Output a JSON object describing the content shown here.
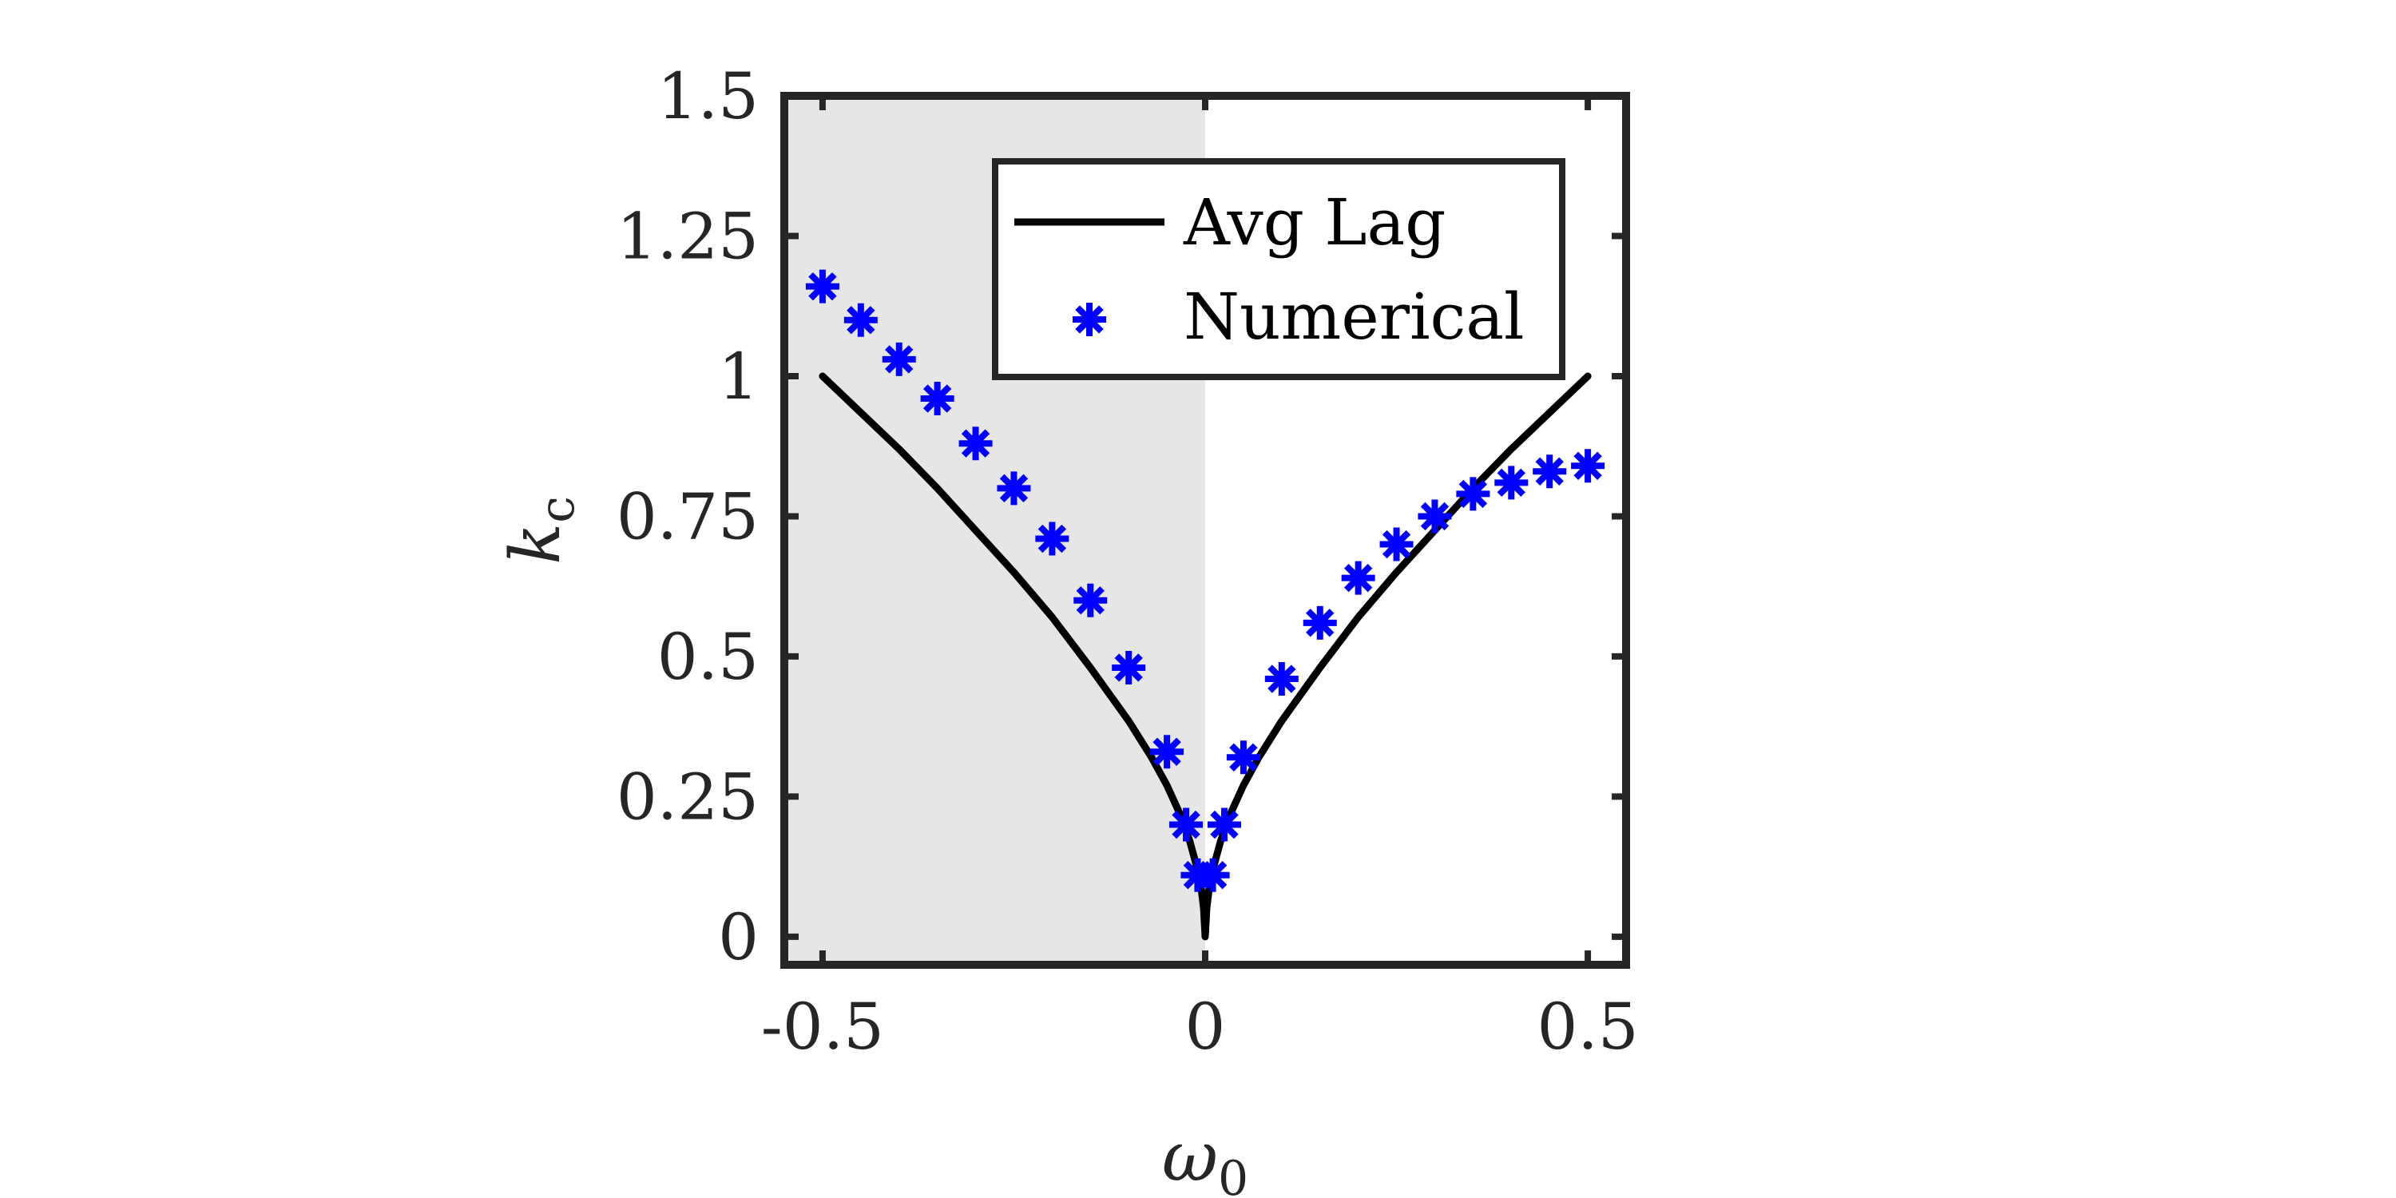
{
  "chart_data": {
    "type": "line",
    "title": "",
    "xlabel": "ω",
    "xlabel_sub": "0",
    "ylabel": "k",
    "ylabel_sub": "c",
    "xlim": [
      -0.55,
      0.55
    ],
    "ylim": [
      -0.05,
      1.5
    ],
    "xticks": [
      -0.5,
      0,
      0.5
    ],
    "xtick_labels": [
      "-0.5",
      "0",
      "0.5"
    ],
    "yticks": [
      0,
      0.25,
      0.5,
      0.75,
      1,
      1.25,
      1.5
    ],
    "ytick_labels": [
      "0",
      "0.25",
      "0.5",
      "0.75",
      "1",
      "1.25",
      "1.5"
    ],
    "shaded_region": {
      "x_from": -0.55,
      "x_to": 0,
      "color": "#e6e6e6"
    },
    "legend_position": "top-right",
    "grid": false,
    "series": [
      {
        "name": "Avg Lag",
        "style": "line",
        "color": "#000000",
        "x": [
          -0.5,
          -0.45,
          -0.4,
          -0.35,
          -0.3,
          -0.25,
          -0.2,
          -0.15,
          -0.1,
          -0.07,
          -0.05,
          -0.03,
          -0.02,
          -0.01,
          -0.005,
          -0.002,
          0,
          0.002,
          0.005,
          0.01,
          0.02,
          0.03,
          0.05,
          0.07,
          0.1,
          0.15,
          0.2,
          0.25,
          0.3,
          0.35,
          0.4,
          0.45,
          0.5
        ],
        "y": [
          1.0,
          0.935,
          0.87,
          0.8,
          0.725,
          0.65,
          0.57,
          0.48,
          0.385,
          0.32,
          0.27,
          0.21,
          0.17,
          0.12,
          0.085,
          0.05,
          0.0,
          0.05,
          0.085,
          0.12,
          0.17,
          0.21,
          0.27,
          0.32,
          0.385,
          0.48,
          0.57,
          0.65,
          0.725,
          0.8,
          0.87,
          0.935,
          1.0
        ]
      },
      {
        "name": "Numerical",
        "style": "marker",
        "marker": "asterisk",
        "color": "#0000ff",
        "x": [
          -0.5,
          -0.45,
          -0.4,
          -0.35,
          -0.3,
          -0.25,
          -0.2,
          -0.15,
          -0.1,
          -0.05,
          -0.025,
          -0.01,
          0.01,
          0.025,
          0.05,
          0.1,
          0.15,
          0.2,
          0.25,
          0.3,
          0.35,
          0.4,
          0.45,
          0.5
        ],
        "y": [
          1.16,
          1.1,
          1.03,
          0.96,
          0.88,
          0.8,
          0.71,
          0.6,
          0.48,
          0.33,
          0.2,
          0.11,
          0.11,
          0.2,
          0.32,
          0.46,
          0.56,
          0.64,
          0.7,
          0.75,
          0.79,
          0.81,
          0.83,
          0.84
        ]
      }
    ]
  }
}
